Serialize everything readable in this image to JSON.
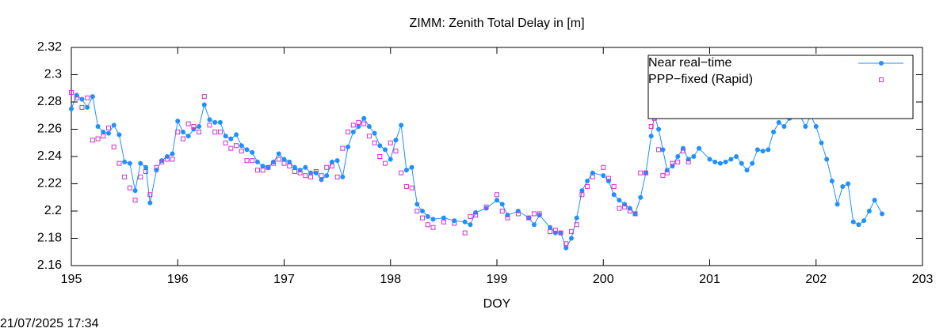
{
  "chart_data": {
    "type": "line",
    "title": "ZIMM: Zenith Total Delay in [m]",
    "x_label": "DOY",
    "timestamp": "21/07/2025 17:34",
    "xlim": [
      195,
      203
    ],
    "xticks": [
      195,
      196,
      197,
      198,
      199,
      200,
      201,
      202,
      203
    ],
    "ylim": [
      2.16,
      2.32
    ],
    "yticks": [
      2.16,
      2.18,
      2.2,
      2.22,
      2.24,
      2.26,
      2.28,
      2.3,
      2.32
    ],
    "legend": "top-right",
    "series": [
      {
        "name": "Near real−time",
        "color": "#1e90ff",
        "marker": "dot-line",
        "x": [
          195.0,
          195.05,
          195.1,
          195.15,
          195.2,
          195.25,
          195.3,
          195.35,
          195.4,
          195.45,
          195.5,
          195.55,
          195.6,
          195.65,
          195.7,
          195.74,
          195.8,
          195.85,
          195.9,
          195.95,
          196.0,
          196.05,
          196.1,
          196.15,
          196.2,
          196.25,
          196.3,
          196.35,
          196.4,
          196.45,
          196.5,
          196.55,
          196.6,
          196.65,
          196.7,
          196.75,
          196.8,
          196.85,
          196.9,
          196.95,
          197.0,
          197.05,
          197.1,
          197.15,
          197.2,
          197.25,
          197.3,
          197.35,
          197.4,
          197.45,
          197.5,
          197.55,
          197.6,
          197.65,
          197.7,
          197.75,
          197.8,
          197.85,
          197.9,
          197.95,
          198.0,
          198.05,
          198.1,
          198.15,
          198.2,
          198.25,
          198.3,
          198.35,
          198.4,
          198.5,
          198.6,
          198.7,
          198.75,
          198.8,
          198.9,
          199.0,
          199.05,
          199.1,
          199.2,
          199.3,
          199.35,
          199.4,
          199.5,
          199.55,
          199.6,
          199.65,
          199.7,
          199.75,
          199.8,
          199.85,
          199.9,
          200.0,
          200.05,
          200.1,
          200.15,
          200.2,
          200.25,
          200.3,
          200.35,
          200.4,
          200.45,
          200.48,
          200.52,
          200.56,
          200.6,
          200.65,
          200.7,
          200.75,
          200.8,
          200.85,
          200.9,
          201.0,
          201.05,
          201.1,
          201.15,
          201.2,
          201.25,
          201.3,
          201.35,
          201.4,
          201.45,
          201.5,
          201.55,
          201.6,
          201.65,
          201.7,
          201.75,
          201.8,
          201.85,
          201.9,
          201.95,
          202.0,
          202.05,
          202.1,
          202.15,
          202.2,
          202.25,
          202.3,
          202.35,
          202.4,
          202.45,
          202.5,
          202.55,
          202.62
        ],
        "values": [
          2.275,
          2.285,
          2.282,
          2.276,
          2.284,
          2.262,
          2.258,
          2.257,
          2.263,
          2.256,
          2.236,
          2.235,
          2.215,
          2.235,
          2.232,
          2.206,
          2.23,
          2.237,
          2.24,
          2.242,
          2.266,
          2.258,
          2.255,
          2.26,
          2.262,
          2.278,
          2.267,
          2.265,
          2.265,
          2.255,
          2.253,
          2.256,
          2.248,
          2.245,
          2.243,
          2.236,
          2.233,
          2.232,
          2.236,
          2.242,
          2.238,
          2.236,
          2.232,
          2.23,
          2.232,
          2.228,
          2.228,
          2.223,
          2.226,
          2.236,
          2.237,
          2.225,
          2.247,
          2.258,
          2.262,
          2.268,
          2.262,
          2.257,
          2.248,
          2.245,
          2.238,
          2.252,
          2.263,
          2.23,
          2.232,
          2.205,
          2.2,
          2.196,
          2.194,
          2.195,
          2.193,
          2.192,
          2.19,
          2.199,
          2.202,
          2.208,
          2.205,
          2.197,
          2.2,
          2.195,
          2.19,
          2.197,
          2.188,
          2.184,
          2.184,
          2.173,
          2.18,
          2.195,
          2.215,
          2.222,
          2.228,
          2.226,
          2.222,
          2.212,
          2.208,
          2.205,
          2.202,
          2.198,
          2.21,
          2.228,
          2.255,
          2.27,
          2.26,
          2.245,
          2.23,
          2.233,
          2.24,
          2.246,
          2.238,
          2.24,
          2.246,
          2.238,
          2.236,
          2.235,
          2.236,
          2.238,
          2.24,
          2.235,
          2.23,
          2.235,
          2.245,
          2.244,
          2.245,
          2.258,
          2.265,
          2.262,
          2.268,
          2.275,
          2.27,
          2.262,
          2.27,
          2.262,
          2.25,
          2.238,
          2.222,
          2.205,
          2.218,
          2.22,
          2.192,
          2.19,
          2.193,
          2.2,
          2.208,
          2.198
        ]
      },
      {
        "name": "PPP−fixed (Rapid)",
        "color": "#cc33cc",
        "marker": "square",
        "x": [
          195.0,
          195.05,
          195.1,
          195.15,
          195.2,
          195.25,
          195.3,
          195.35,
          195.4,
          195.45,
          195.5,
          195.55,
          195.6,
          195.65,
          195.7,
          195.74,
          195.8,
          195.85,
          195.9,
          195.95,
          196.0,
          196.05,
          196.1,
          196.15,
          196.2,
          196.25,
          196.3,
          196.35,
          196.4,
          196.45,
          196.5,
          196.55,
          196.6,
          196.65,
          196.7,
          196.75,
          196.8,
          196.85,
          196.9,
          196.95,
          197.0,
          197.05,
          197.1,
          197.15,
          197.2,
          197.25,
          197.3,
          197.35,
          197.4,
          197.45,
          197.5,
          197.55,
          197.6,
          197.65,
          197.7,
          197.75,
          197.8,
          197.85,
          197.9,
          197.95,
          198.0,
          198.05,
          198.1,
          198.15,
          198.2,
          198.25,
          198.3,
          198.35,
          198.4,
          198.5,
          198.6,
          198.7,
          198.75,
          198.8,
          198.9,
          199.0,
          199.05,
          199.1,
          199.2,
          199.3,
          199.35,
          199.4,
          199.5,
          199.55,
          199.6,
          199.65,
          199.7,
          199.75,
          199.8,
          199.85,
          199.9,
          200.0,
          200.05,
          200.1,
          200.15,
          200.2,
          200.25,
          200.3,
          200.35,
          200.4,
          200.45,
          200.48,
          200.52,
          200.56,
          200.6,
          200.65,
          200.7,
          200.75,
          200.8
        ],
        "values": [
          2.287,
          2.283,
          2.276,
          2.283,
          2.252,
          2.253,
          2.255,
          2.261,
          2.247,
          2.235,
          2.225,
          2.217,
          2.208,
          2.225,
          2.229,
          2.212,
          2.232,
          2.236,
          2.238,
          2.238,
          2.258,
          2.253,
          2.264,
          2.262,
          2.258,
          2.284,
          2.263,
          2.258,
          2.258,
          2.25,
          2.246,
          2.248,
          2.244,
          2.237,
          2.237,
          2.23,
          2.23,
          2.232,
          2.235,
          2.238,
          2.235,
          2.233,
          2.229,
          2.228,
          2.226,
          2.225,
          2.229,
          2.226,
          2.232,
          2.233,
          2.225,
          2.246,
          2.258,
          2.263,
          2.265,
          2.264,
          2.255,
          2.25,
          2.24,
          2.235,
          2.25,
          2.244,
          2.228,
          2.218,
          2.217,
          2.2,
          2.195,
          2.19,
          2.188,
          2.192,
          2.191,
          2.184,
          2.196,
          2.197,
          2.203,
          2.212,
          2.2,
          2.195,
          2.198,
          2.195,
          2.198,
          2.198,
          2.185,
          2.186,
          2.184,
          2.176,
          2.185,
          2.19,
          2.212,
          2.218,
          2.225,
          2.232,
          2.224,
          2.218,
          2.202,
          2.203,
          2.2,
          2.198,
          2.228,
          2.228,
          2.262,
          2.268,
          2.245,
          2.226,
          2.228,
          2.235,
          2.236,
          2.244,
          2.236
        ]
      }
    ]
  }
}
